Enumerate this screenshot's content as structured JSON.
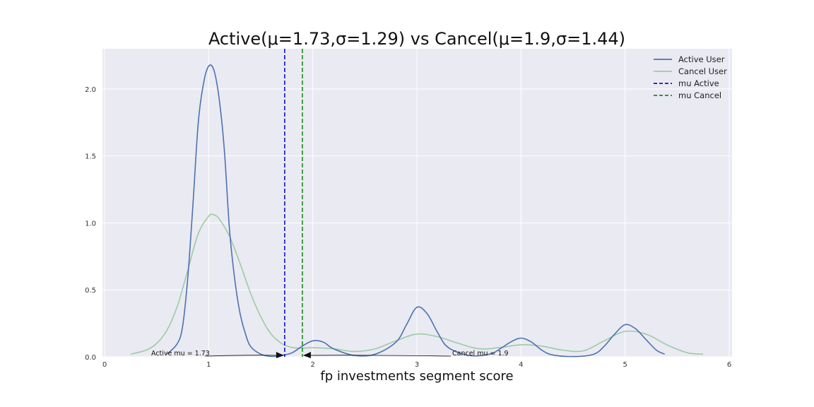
{
  "chart_data": {
    "type": "line",
    "title": "Active(μ=1.73,σ=1.29) vs Cancel(μ=1.9,σ=1.44)",
    "xlabel": "fp investments segment score",
    "ylabel": "",
    "xlim": [
      0,
      6
    ],
    "ylim": [
      0,
      2.3
    ],
    "xticks": [
      "0",
      "1",
      "2",
      "3",
      "4",
      "5",
      "6"
    ],
    "yticks": [
      "0.0",
      "0.5",
      "1.0",
      "1.5",
      "2.0"
    ],
    "grid": true,
    "legend_position": "top-right",
    "background": "#eaeaf2",
    "series": [
      {
        "name": "Active User",
        "color": "#4c72b0",
        "x": [
          0.6,
          0.7,
          0.75,
          0.8,
          0.85,
          0.9,
          0.95,
          1.0,
          1.05,
          1.1,
          1.15,
          1.2,
          1.25,
          1.3,
          1.35,
          1.4,
          1.5,
          1.6,
          1.7,
          1.8,
          1.9,
          2.0,
          2.1,
          2.2,
          2.4,
          2.6,
          2.8,
          2.9,
          3.0,
          3.1,
          3.2,
          3.3,
          3.5,
          3.7,
          3.8,
          3.9,
          4.0,
          4.1,
          4.2,
          4.3,
          4.5,
          4.7,
          4.8,
          4.9,
          5.0,
          5.1,
          5.2,
          5.3,
          5.38
        ],
        "y": [
          0.02,
          0.1,
          0.23,
          0.6,
          1.15,
          1.75,
          2.04,
          2.17,
          2.14,
          1.93,
          1.55,
          0.95,
          0.58,
          0.33,
          0.18,
          0.08,
          0.02,
          0.003,
          0.01,
          0.03,
          0.08,
          0.12,
          0.11,
          0.06,
          0.01,
          0.02,
          0.11,
          0.24,
          0.37,
          0.32,
          0.18,
          0.07,
          0.01,
          0.02,
          0.06,
          0.11,
          0.14,
          0.11,
          0.05,
          0.015,
          0.002,
          0.02,
          0.08,
          0.17,
          0.24,
          0.21,
          0.13,
          0.05,
          0.02
        ]
      },
      {
        "name": "Cancel User",
        "color": "#9ccaa6",
        "x": [
          0.25,
          0.4,
          0.5,
          0.6,
          0.7,
          0.8,
          0.9,
          1.0,
          1.05,
          1.1,
          1.2,
          1.3,
          1.4,
          1.5,
          1.6,
          1.7,
          1.8,
          1.9,
          2.0,
          2.2,
          2.4,
          2.6,
          2.8,
          3.0,
          3.2,
          3.4,
          3.6,
          3.8,
          4.0,
          4.2,
          4.4,
          4.6,
          4.8,
          5.0,
          5.2,
          5.4,
          5.6,
          5.75
        ],
        "y": [
          0.02,
          0.05,
          0.1,
          0.2,
          0.38,
          0.65,
          0.92,
          1.05,
          1.06,
          1.03,
          0.9,
          0.7,
          0.48,
          0.3,
          0.17,
          0.1,
          0.07,
          0.065,
          0.068,
          0.06,
          0.04,
          0.06,
          0.12,
          0.17,
          0.15,
          0.1,
          0.06,
          0.07,
          0.09,
          0.08,
          0.05,
          0.045,
          0.12,
          0.19,
          0.17,
          0.09,
          0.03,
          0.02
        ]
      }
    ],
    "vlines": [
      {
        "name": "mu Active",
        "x": 1.73,
        "color": "#1010c8"
      },
      {
        "name": "mu Cancel",
        "x": 1.9,
        "color": "#1a8a1a"
      }
    ],
    "annotations": [
      {
        "text": "Active mu = 1.73",
        "x": 1.73
      },
      {
        "text": "Cancel mu = 1.9",
        "x": 1.9
      }
    ]
  }
}
